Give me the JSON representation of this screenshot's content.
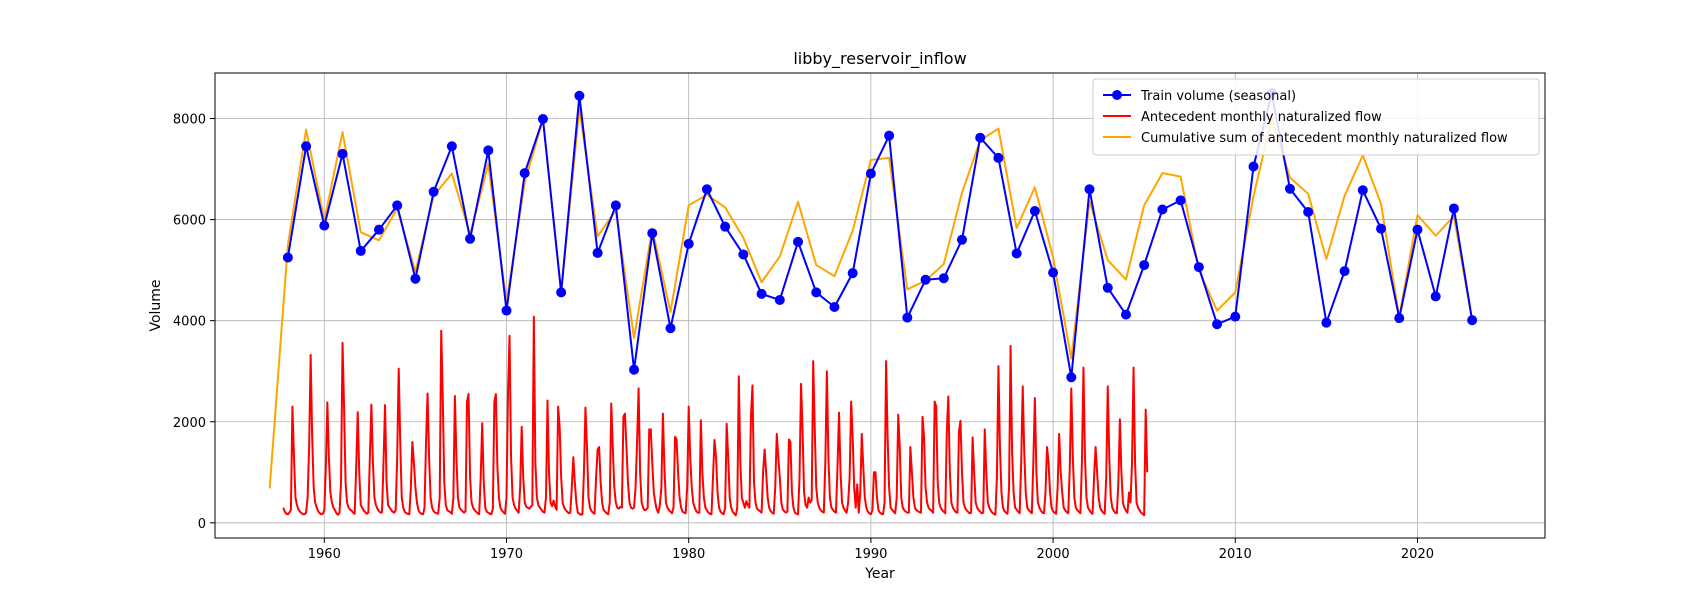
{
  "chart_data": {
    "type": "line",
    "title": "libby_reservoir_inflow",
    "xlabel": "Year",
    "ylabel": "Volume",
    "xlim": [
      1954,
      2027
    ],
    "ylim": [
      -300,
      8900
    ],
    "xticks": [
      1960,
      1970,
      1980,
      1990,
      2000,
      2010,
      2020
    ],
    "yticks": [
      0,
      2000,
      4000,
      6000,
      8000
    ],
    "grid": true,
    "legend_position": "top-right",
    "series": [
      {
        "name": "Train volume (seasonal)",
        "color": "#0000ff",
        "marker": "circle",
        "x": [
          1958,
          1959,
          1960,
          1961,
          1962,
          1963,
          1964,
          1965,
          1966,
          1967,
          1968,
          1969,
          1970,
          1971,
          1972,
          1973,
          1974,
          1975,
          1976,
          1977,
          1978,
          1979,
          1980,
          1981,
          1982,
          1983,
          1984,
          1985,
          1986,
          1987,
          1988,
          1989,
          1990,
          1991,
          1992,
          1993,
          1994,
          1995,
          1996,
          1997,
          1998,
          1999,
          2000,
          2001,
          2002,
          2003,
          2004,
          2005,
          2006,
          2007,
          2008,
          2009,
          2010,
          2011,
          2012,
          2013,
          2014,
          2015,
          2016,
          2017,
          2018,
          2019,
          2020,
          2021,
          2022,
          2023
        ],
        "y": [
          5250,
          7450,
          5880,
          7300,
          5380,
          5800,
          6280,
          4830,
          6550,
          7450,
          5620,
          7370,
          4200,
          6920,
          7990,
          4560,
          8450,
          5340,
          6280,
          3030,
          5730,
          3850,
          5520,
          6600,
          5860,
          5310,
          4530,
          4410,
          5560,
          4560,
          4270,
          4940,
          6910,
          7660,
          4060,
          4810,
          4840,
          5600,
          7620,
          7220,
          5330,
          6170,
          4950,
          2880,
          6600,
          4650,
          4120,
          5100,
          6200,
          6380,
          5060,
          3930,
          4080,
          7050,
          8500,
          6610,
          6150,
          3960,
          4980,
          6580,
          5820,
          4050,
          5800,
          4480,
          6220,
          4010
        ]
      },
      {
        "name": "Antecedent monthly naturalized flow",
        "color": "#ff0000",
        "monthly_start": 1957.75,
        "y": [
          300,
          220,
          180,
          170,
          200,
          260,
          2300,
          1300,
          500,
          350,
          260,
          220,
          190,
          170,
          170,
          200,
          500,
          1500,
          3320,
          1700,
          700,
          400,
          300,
          230,
          190,
          170,
          180,
          250,
          1100,
          2380,
          1300,
          600,
          400,
          300,
          250,
          190,
          160,
          200,
          800,
          3560,
          2300,
          800,
          400,
          300,
          260,
          240,
          200,
          180,
          1100,
          2190,
          1000,
          350,
          300,
          240,
          210,
          180,
          200,
          1300,
          2340,
          1200,
          500,
          350,
          280,
          230,
          200,
          210,
          1200,
          2330,
          800,
          350,
          300,
          260,
          220,
          200,
          250,
          1300,
          3050,
          1600,
          500,
          300,
          220,
          190,
          180,
          170,
          700,
          1600,
          1200,
          700,
          400,
          250,
          200,
          180,
          170,
          300,
          1600,
          2560,
          1300,
          500,
          300,
          230,
          200,
          190,
          180,
          500,
          3800,
          2500,
          800,
          350,
          250,
          230,
          210,
          180,
          500,
          2510,
          1300,
          500,
          300,
          260,
          230,
          200,
          230,
          2400,
          2550,
          900,
          400,
          300,
          250,
          220,
          190,
          170,
          900,
          1970,
          800,
          300,
          220,
          200,
          180,
          170,
          280,
          2390,
          2550,
          1100,
          500,
          300,
          240,
          210,
          180,
          500,
          2600,
          3700,
          1300,
          500,
          350,
          280,
          240,
          200,
          700,
          1900,
          900,
          400,
          320,
          300,
          280,
          320,
          350,
          4080,
          1200,
          500,
          350,
          300,
          260,
          220,
          200,
          500,
          2420,
          1000,
          400,
          330,
          440,
          320,
          260,
          2300,
          1900,
          900,
          400,
          300,
          250,
          220,
          190,
          200,
          700,
          1300,
          800,
          400,
          200,
          180,
          160,
          170,
          1000,
          2280,
          1500,
          500,
          300,
          230,
          200,
          180,
          900,
          1450,
          1500,
          800,
          400,
          250,
          220,
          190,
          170,
          400,
          2360,
          1500,
          700,
          400,
          300,
          280,
          320,
          300,
          2100,
          2160,
          1500,
          800,
          400,
          300,
          280,
          300,
          700,
          1600,
          2660,
          1000,
          400,
          300,
          250,
          260,
          300,
          1850,
          1850,
          1200,
          600,
          400,
          260,
          200,
          350,
          700,
          2160,
          1100,
          400,
          300,
          250,
          220,
          190,
          300,
          1700,
          1650,
          1000,
          500,
          300,
          220,
          200,
          190,
          700,
          2300,
          1300,
          700,
          400,
          300,
          230,
          200,
          200,
          2030,
          1000,
          500,
          300,
          250,
          200,
          180,
          170,
          900,
          1640,
          1300,
          600,
          300,
          220,
          190,
          170,
          300,
          1960,
          1300,
          500,
          300,
          220,
          180,
          150,
          300,
          2900,
          1200,
          500,
          400,
          300,
          430,
          350,
          300,
          2100,
          2720,
          800,
          400,
          280,
          250,
          230,
          200,
          1000,
          1450,
          1000,
          500,
          300,
          230,
          200,
          180,
          700,
          1760,
          1300,
          900,
          400,
          260,
          230,
          200,
          220,
          1650,
          1600,
          600,
          300,
          200,
          180,
          170,
          900,
          2750,
          1800,
          600,
          350,
          300,
          500,
          400,
          450,
          3200,
          1900,
          700,
          400,
          300,
          250,
          220,
          200,
          1200,
          3000,
          1300,
          500,
          300,
          260,
          220,
          200,
          1100,
          2180,
          1000,
          400,
          300,
          240,
          200,
          400,
          900,
          2400,
          1700,
          700,
          300,
          760,
          200,
          600,
          1760,
          1100,
          500,
          300,
          220,
          190,
          170,
          250,
          1000,
          1000,
          500,
          250,
          200,
          180,
          170,
          400,
          3200,
          1700,
          700,
          300,
          260,
          220,
          190,
          500,
          2140,
          1500,
          500,
          300,
          250,
          220,
          200,
          200,
          1500,
          1000,
          500,
          300,
          250,
          230,
          210,
          200,
          2100,
          1700,
          700,
          400,
          300,
          260,
          240,
          200,
          2400,
          2300,
          800,
          400,
          300,
          250,
          220,
          190,
          1800,
          2500,
          1000,
          400,
          300,
          250,
          210,
          200,
          1800,
          2020,
          1000,
          400,
          300,
          250,
          220,
          190,
          200,
          1690,
          1000,
          400,
          300,
          250,
          220,
          190,
          200,
          1850,
          1000,
          400,
          300,
          240,
          200,
          180,
          160,
          900,
          3100,
          1500,
          600,
          300,
          230,
          200,
          180,
          700,
          3500,
          1400,
          600,
          300,
          260,
          220,
          190,
          1200,
          2700,
          1400,
          600,
          300,
          250,
          220,
          190,
          1200,
          2470,
          1000,
          400,
          300,
          240,
          200,
          190,
          600,
          1500,
          1200,
          600,
          300,
          230,
          200,
          180,
          700,
          1760,
          1000,
          600,
          300,
          250,
          210,
          190,
          1100,
          2660,
          1300,
          500,
          300,
          250,
          220,
          190,
          1200,
          3070,
          1300,
          500,
          300,
          250,
          200,
          180,
          900,
          1500,
          1000,
          500,
          300,
          240,
          200,
          180,
          900,
          2700,
          1300,
          500,
          300,
          240,
          200,
          190,
          800,
          2050,
          1000,
          400,
          300,
          240,
          200,
          600,
          400,
          1200,
          3070,
          1200,
          400,
          300,
          250,
          200,
          180,
          150,
          2240,
          1000
        ]
      },
      {
        "name": "Cumulative sum of antecedent monthly naturalized flow",
        "color": "#ffa500",
        "x": [
          1957,
          1958,
          1959,
          1960,
          1961,
          1962,
          1963,
          1964,
          1965,
          1966,
          1967,
          1968,
          1969,
          1970,
          1971,
          1972,
          1973,
          1974,
          1975,
          1976,
          1977,
          1978,
          1979,
          1980,
          1981,
          1982,
          1983,
          1984,
          1985,
          1986,
          1987,
          1988,
          1989,
          1990,
          1991,
          1992,
          1993,
          1994,
          1995,
          1996,
          1997,
          1998,
          1999,
          2000,
          2001,
          2002,
          2003,
          2004,
          2005,
          2006,
          2007,
          2008,
          2009,
          2010,
          2011,
          2012,
          2013,
          2014,
          2015,
          2016,
          2017,
          2018,
          2019,
          2020,
          2021,
          2022,
          2023
        ],
        "y": [
          680,
          5500,
          7780,
          5980,
          7730,
          5750,
          5590,
          6220,
          4970,
          6470,
          6910,
          5700,
          7100,
          4360,
          6740,
          7980,
          4560,
          8200,
          5670,
          6180,
          3660,
          5820,
          4170,
          6280,
          6490,
          6240,
          5640,
          4760,
          5270,
          6350,
          5100,
          4880,
          5780,
          7180,
          7220,
          4620,
          4790,
          5120,
          6530,
          7570,
          7800,
          5830,
          6640,
          5250,
          3250,
          6360,
          5200,
          4810,
          6280,
          6920,
          6850,
          5000,
          4200,
          4560,
          6460,
          8000,
          6830,
          6510,
          5220,
          6470,
          7270,
          6310,
          4070,
          6090,
          5680,
          6070,
          4000
        ]
      }
    ]
  }
}
